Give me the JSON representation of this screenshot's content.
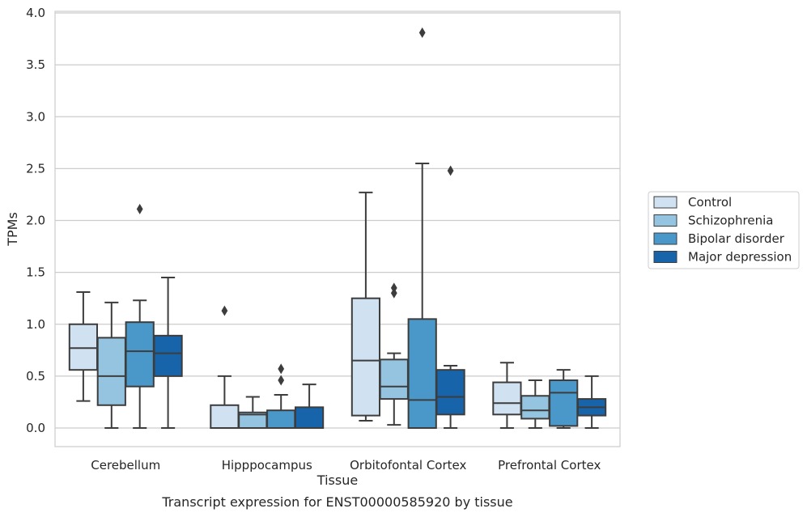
{
  "chart_data": {
    "type": "box",
    "xlabel": "Tissue",
    "ylabel": "TPMs",
    "caption": "Transcript expression for ENST00000585920 by tissue",
    "ylim": [
      -0.18,
      4.02
    ],
    "yticks": [
      "0.0",
      "0.5",
      "1.0",
      "1.5",
      "2.0",
      "2.5",
      "3.0",
      "3.5",
      "4.0"
    ],
    "grid": "horizontal",
    "legend_position": "right",
    "categories": [
      "Cerebellum",
      "Hipppocampus",
      "Orbitofontal Cortex",
      "Prefrontal Cortex"
    ],
    "series": [
      {
        "name": "Control",
        "color": "#d0e1f2",
        "boxes": [
          {
            "min": 0.26,
            "q1": 0.56,
            "median": 0.77,
            "q3": 1.0,
            "max": 1.31,
            "outliers": []
          },
          {
            "min": 0.0,
            "q1": 0.0,
            "median": 0.0,
            "q3": 0.22,
            "max": 0.5,
            "outliers": [
              1.13
            ]
          },
          {
            "min": 0.07,
            "q1": 0.12,
            "median": 0.65,
            "q3": 1.25,
            "max": 2.27,
            "outliers": []
          },
          {
            "min": 0.0,
            "q1": 0.13,
            "median": 0.24,
            "q3": 0.44,
            "max": 0.63,
            "outliers": []
          }
        ]
      },
      {
        "name": "Schizophrenia",
        "color": "#94c4df",
        "boxes": [
          {
            "min": 0.0,
            "q1": 0.22,
            "median": 0.5,
            "q3": 0.87,
            "max": 1.21,
            "outliers": []
          },
          {
            "min": 0.0,
            "q1": 0.0,
            "median": 0.13,
            "q3": 0.15,
            "max": 0.3,
            "outliers": []
          },
          {
            "min": 0.03,
            "q1": 0.28,
            "median": 0.4,
            "q3": 0.66,
            "max": 0.72,
            "outliers": [
              1.3,
              1.35
            ]
          },
          {
            "min": 0.0,
            "q1": 0.09,
            "median": 0.17,
            "q3": 0.31,
            "max": 0.46,
            "outliers": []
          }
        ]
      },
      {
        "name": "Bipolar disorder",
        "color": "#4a98c9",
        "boxes": [
          {
            "min": 0.0,
            "q1": 0.4,
            "median": 0.74,
            "q3": 1.02,
            "max": 1.23,
            "outliers": [
              2.11
            ]
          },
          {
            "min": 0.0,
            "q1": 0.0,
            "median": 0.0,
            "q3": 0.17,
            "max": 0.32,
            "outliers": [
              0.46,
              0.57
            ]
          },
          {
            "min": 0.0,
            "q1": 0.0,
            "median": 0.27,
            "q3": 1.05,
            "max": 2.55,
            "outliers": [
              3.81
            ]
          },
          {
            "min": 0.0,
            "q1": 0.02,
            "median": 0.34,
            "q3": 0.46,
            "max": 0.56,
            "outliers": []
          }
        ]
      },
      {
        "name": "Major depression",
        "color": "#1764ab",
        "boxes": [
          {
            "min": 0.0,
            "q1": 0.5,
            "median": 0.72,
            "q3": 0.89,
            "max": 1.45,
            "outliers": []
          },
          {
            "min": 0.0,
            "q1": 0.0,
            "median": 0.0,
            "q3": 0.2,
            "max": 0.42,
            "outliers": []
          },
          {
            "min": 0.0,
            "q1": 0.13,
            "median": 0.3,
            "q3": 0.56,
            "max": 0.6,
            "outliers": [
              2.48
            ]
          },
          {
            "min": 0.0,
            "q1": 0.12,
            "median": 0.2,
            "q3": 0.28,
            "max": 0.5,
            "outliers": []
          }
        ]
      }
    ]
  }
}
